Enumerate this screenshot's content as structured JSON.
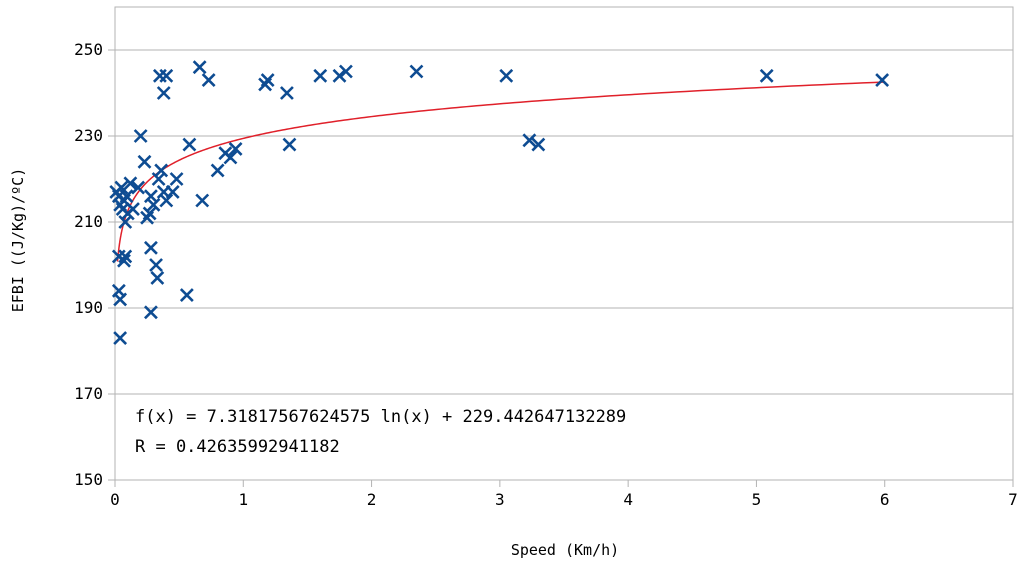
{
  "chart_data": {
    "type": "scatter",
    "title": "",
    "xlabel": "Speed (Km/h)",
    "ylabel": "EFBI ((J/Kg)/ºC)",
    "xlim": [
      0,
      7
    ],
    "ylim": [
      150,
      260
    ],
    "x_ticks": [
      0,
      1,
      2,
      3,
      4,
      5,
      6,
      7
    ],
    "y_ticks": [
      150,
      170,
      190,
      210,
      230,
      250
    ],
    "grid": "horizontal",
    "legend": "none",
    "marker": "x",
    "series": [
      {
        "color": "#0e4c92",
        "points": [
          [
            0.01,
            217
          ],
          [
            0.03,
            216
          ],
          [
            0.04,
            214
          ],
          [
            0.05,
            218
          ],
          [
            0.06,
            213
          ],
          [
            0.07,
            215
          ],
          [
            0.08,
            210
          ],
          [
            0.09,
            216
          ],
          [
            0.1,
            212
          ],
          [
            0.03,
            194
          ],
          [
            0.04,
            192
          ],
          [
            0.03,
            202
          ],
          [
            0.04,
            183
          ],
          [
            0.07,
            201
          ],
          [
            0.08,
            202
          ],
          [
            0.12,
            219
          ],
          [
            0.14,
            213
          ],
          [
            0.18,
            218
          ],
          [
            0.2,
            230
          ],
          [
            0.23,
            224
          ],
          [
            0.25,
            211
          ],
          [
            0.27,
            212
          ],
          [
            0.28,
            216
          ],
          [
            0.28,
            204
          ],
          [
            0.28,
            189
          ],
          [
            0.3,
            214
          ],
          [
            0.32,
            200
          ],
          [
            0.33,
            197
          ],
          [
            0.34,
            220
          ],
          [
            0.36,
            222
          ],
          [
            0.38,
            217
          ],
          [
            0.4,
            215
          ],
          [
            0.45,
            217
          ],
          [
            0.48,
            220
          ],
          [
            0.35,
            244
          ],
          [
            0.38,
            240
          ],
          [
            0.4,
            244
          ],
          [
            0.56,
            193
          ],
          [
            0.58,
            228
          ],
          [
            0.66,
            246
          ],
          [
            0.68,
            215
          ],
          [
            0.73,
            243
          ],
          [
            0.8,
            222
          ],
          [
            0.86,
            226
          ],
          [
            0.9,
            225
          ],
          [
            0.94,
            227
          ],
          [
            1.17,
            242
          ],
          [
            1.19,
            243
          ],
          [
            1.34,
            240
          ],
          [
            1.36,
            228
          ],
          [
            1.6,
            244
          ],
          [
            1.75,
            244
          ],
          [
            1.8,
            245
          ],
          [
            2.35,
            245
          ],
          [
            3.05,
            244
          ],
          [
            3.23,
            229
          ],
          [
            3.3,
            228
          ],
          [
            5.08,
            244
          ],
          [
            5.98,
            243
          ]
        ]
      }
    ],
    "trendline": {
      "type": "logarithmic",
      "color": "#e0202a",
      "a": 7.31817567624575,
      "b": 229.442647132289,
      "x_range": [
        0.02,
        6
      ]
    },
    "annotations": [
      "f(x) = 7.31817567624575 ln(x) + 229.442647132289",
      "R  = 0.42635992941182"
    ]
  }
}
